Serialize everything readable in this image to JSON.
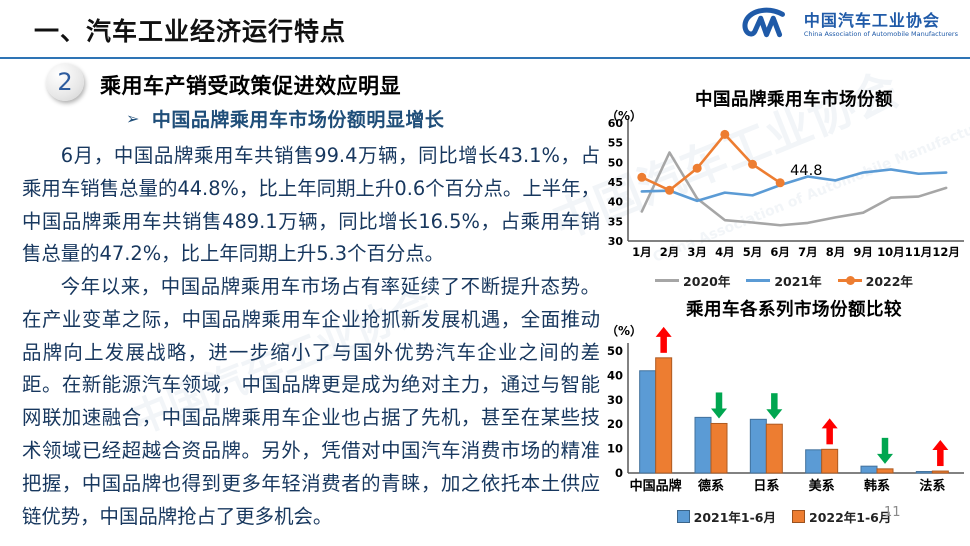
{
  "header": {
    "title": "一、汽车工业经济运行特点",
    "logo": {
      "org_cn": "中国汽车工业协会",
      "org_en": "China Association of Automobile Manufacturers"
    }
  },
  "watermark": {
    "text_cn": "中国汽车工业协会",
    "text_en": "China Association of Automobile Manufacturers"
  },
  "section": {
    "badge": "2",
    "heading": "乘用车产销受政策促进效应明显",
    "bullet_glyph": "➢",
    "subheading": "中国品牌乘用车市场份额明显增长"
  },
  "body": {
    "paragraph1": "6月，中国品牌乘用车共销售99.4万辆，同比增长43.1%，占乘用车销售总量的44.8%，比上年同期上升0.6个百分点。上半年，中国品牌乘用车共销售489.1万辆，同比增长16.5%，占乘用车销售总量的47.2%，比上年同期上升5.3个百分点。",
    "paragraph2": "今年以来，中国品牌乘用车市场占有率延续了不断提升态势。在产业变革之际，中国品牌乘用车企业抢抓新发展机遇，全面推动品牌向上发展战略，进一步缩小了与国外优势汽车企业之间的差距。在新能源汽车领域，中国品牌更是成为绝对主力，通过与智能网联加速融合，中国品牌乘用车企业也占据了先机，甚至在某些技术领域已经超越合资品牌。另外，凭借对中国汽车消费市场的精准把握，中国品牌也得到更多年轻消费者的青睐，加之依托本土供应链优势，中国品牌抢占了更多机会。"
  },
  "colors": {
    "header_rule": "#2E74B5",
    "body_text": "#17375E",
    "logo_blue": "#1F5AA8",
    "axis": "#595959",
    "gray_series": "#A6A6A6",
    "blue_series": "#5B9BD5",
    "orange_series": "#ED7D31",
    "arrow_up": "#FF0000",
    "arrow_down": "#00A650"
  },
  "chart_data": [
    {
      "type": "line",
      "title": "中国品牌乘用车市场份额",
      "unit_label": "（%）",
      "x": [
        "1月",
        "2月",
        "3月",
        "4月",
        "5月",
        "6月",
        "7月",
        "8月",
        "9月",
        "10月",
        "11月",
        "12月"
      ],
      "ylim": [
        30,
        60
      ],
      "yticks": [
        30,
        35,
        40,
        45,
        50,
        55,
        60
      ],
      "grid": false,
      "legend_position": "bottom",
      "series": [
        {
          "name": "2020年",
          "color": "#A6A6A6",
          "marker": false,
          "values": [
            37.5,
            52.5,
            40.8,
            35.3,
            34.7,
            34.0,
            34.6,
            36.0,
            37.2,
            41.0,
            41.3,
            43.5
          ]
        },
        {
          "name": "2021年",
          "color": "#5B9BD5",
          "marker": false,
          "values": [
            42.6,
            42.8,
            40.2,
            42.3,
            41.6,
            44.2,
            46.4,
            45.4,
            47.4,
            48.2,
            47.1,
            47.4
          ]
        },
        {
          "name": "2022年",
          "color": "#ED7D31",
          "marker": true,
          "values": [
            46.2,
            42.9,
            48.5,
            57.1,
            49.5,
            44.8
          ]
        }
      ],
      "annotation": {
        "text": "44.8",
        "series": "2022年",
        "month_index": 5
      }
    },
    {
      "type": "bar",
      "title": "乘用车各系列市场份额比较",
      "unit_label": "（%）",
      "categories": [
        "中国品牌",
        "德系",
        "日系",
        "美系",
        "韩系",
        "法系"
      ],
      "ylim": [
        0,
        50
      ],
      "yticks": [
        0,
        10,
        20,
        30,
        40,
        50
      ],
      "grid": false,
      "legend_position": "bottom",
      "series": [
        {
          "name": "2021年1-6月",
          "color": "#5B9BD5",
          "border": "#41719C",
          "values": [
            41.9,
            22.8,
            22.0,
            9.5,
            2.8,
            0.6
          ]
        },
        {
          "name": "2022年1-6月",
          "color": "#ED7D31",
          "border": "#AE5A21",
          "values": [
            47.2,
            20.3,
            20.0,
            9.7,
            1.7,
            0.8
          ]
        }
      ],
      "trend_arrows": [
        "up",
        "down",
        "down",
        "up",
        "down",
        "up"
      ],
      "arrow_colors": {
        "up": "#FF0000",
        "down": "#00A650"
      }
    }
  ],
  "page": {
    "number": "11"
  }
}
